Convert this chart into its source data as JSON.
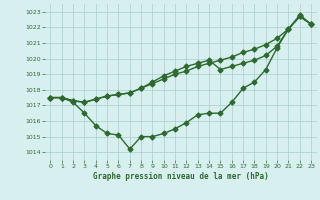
{
  "xlabel": "Graphe pression niveau de la mer (hPa)",
  "x": [
    0,
    1,
    2,
    3,
    4,
    5,
    6,
    7,
    8,
    9,
    10,
    11,
    12,
    13,
    14,
    15,
    16,
    17,
    18,
    19,
    20,
    21,
    22,
    23
  ],
  "line1_y": [
    1017.5,
    1017.5,
    1017.3,
    1017.2,
    1017.4,
    1017.6,
    1017.7,
    1017.8,
    1018.1,
    1018.4,
    1018.7,
    1019.0,
    1019.2,
    1019.5,
    1019.7,
    1019.9,
    1020.1,
    1020.4,
    1020.6,
    1020.9,
    1021.3,
    1021.9,
    1022.7,
    1022.2
  ],
  "line2_y": [
    1017.5,
    1017.5,
    1017.2,
    1016.5,
    1015.7,
    1015.2,
    1015.1,
    1014.2,
    1015.0,
    1015.0,
    1015.2,
    1015.5,
    1015.9,
    1016.4,
    1016.5,
    1016.5,
    1017.2,
    1018.1,
    1018.5,
    1019.3,
    1020.7,
    1021.9,
    1022.8,
    1022.2
  ],
  "line3_y": [
    1017.5,
    1017.5,
    1017.3,
    1017.2,
    1017.4,
    1017.6,
    1017.7,
    1017.8,
    1018.1,
    1018.5,
    1018.9,
    1019.2,
    1019.5,
    1019.7,
    1019.9,
    1019.3,
    1019.5,
    1019.7,
    1019.9,
    1020.2,
    1020.8,
    1021.9,
    1022.7,
    1022.2
  ],
  "line_color": "#2d6a2d",
  "bg_color": "#d8eff0",
  "grid_color": "#aacccc",
  "tick_label_color": "#2d6a2d",
  "xlabel_color": "#2d6a2d",
  "ylim": [
    1013.5,
    1023.5
  ],
  "xlim": [
    -0.5,
    23.5
  ],
  "marker_size": 2.5,
  "linewidth": 1.0
}
